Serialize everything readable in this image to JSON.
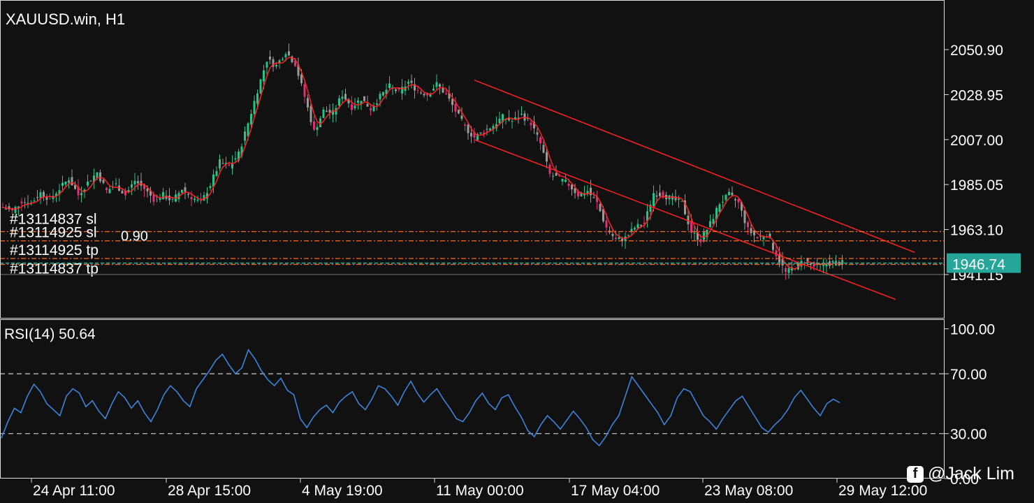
{
  "chart_data": [
    {
      "type": "candlestick",
      "title": "XAUUSD.win, H1",
      "ylim": [
        1930,
        2068
      ],
      "y_ticks": [
        "2050.90",
        "2028.95",
        "2007.00",
        "1985.05",
        "1963.10",
        "1941.15"
      ],
      "y_tick_values": [
        2050.9,
        2028.95,
        2007.0,
        1985.05,
        1963.1,
        1941.15
      ],
      "current_price": "1946.74",
      "current_price_value": 1946.74,
      "x_ticks": [
        "24 Apr 11:00",
        "28 Apr 15:00",
        "4 May 19:00",
        "11 May 00:00",
        "17 May 04:00",
        "23 May 08:00",
        "29 May 12:00"
      ],
      "close_path": [
        [
          0,
          1974
        ],
        [
          3,
          1972
        ],
        [
          6,
          1977
        ],
        [
          9,
          1976
        ],
        [
          12,
          1981
        ],
        [
          15,
          1978
        ],
        [
          18,
          1983
        ],
        [
          21,
          1988
        ],
        [
          24,
          1980
        ],
        [
          27,
          1986
        ],
        [
          30,
          1991
        ],
        [
          33,
          1982
        ],
        [
          36,
          1985
        ],
        [
          39,
          1980
        ],
        [
          42,
          1987
        ],
        [
          45,
          1983
        ],
        [
          48,
          1978
        ],
        [
          51,
          1980
        ],
        [
          54,
          1977
        ],
        [
          57,
          1983
        ],
        [
          60,
          1979
        ],
        [
          63,
          1976
        ],
        [
          66,
          1985
        ],
        [
          69,
          1996
        ],
        [
          72,
          1994
        ],
        [
          75,
          2000
        ],
        [
          78,
          2015
        ],
        [
          81,
          2031
        ],
        [
          84,
          2046
        ],
        [
          87,
          2043
        ],
        [
          90,
          2050
        ],
        [
          93,
          2044
        ],
        [
          96,
          2028
        ],
        [
          99,
          2011
        ],
        [
          102,
          2021
        ],
        [
          105,
          2020
        ],
        [
          108,
          2029
        ],
        [
          111,
          2023
        ],
        [
          114,
          2027
        ],
        [
          117,
          2022
        ],
        [
          120,
          2028
        ],
        [
          123,
          2033
        ],
        [
          126,
          2030
        ],
        [
          129,
          2035
        ],
        [
          132,
          2031
        ],
        [
          135,
          2029
        ],
        [
          138,
          2034
        ],
        [
          141,
          2029
        ],
        [
          144,
          2021
        ],
        [
          147,
          2013
        ],
        [
          150,
          2008
        ],
        [
          153,
          2011
        ],
        [
          156,
          2014
        ],
        [
          159,
          2018
        ],
        [
          162,
          2016
        ],
        [
          165,
          2019
        ],
        [
          168,
          2015
        ],
        [
          171,
          2005
        ],
        [
          174,
          1990
        ],
        [
          177,
          1988
        ],
        [
          180,
          1985
        ],
        [
          183,
          1980
        ],
        [
          186,
          1982
        ],
        [
          189,
          1976
        ],
        [
          192,
          1964
        ],
        [
          195,
          1958
        ],
        [
          198,
          1959
        ],
        [
          201,
          1964
        ],
        [
          204,
          1966
        ],
        [
          207,
          1981
        ],
        [
          210,
          1980
        ],
        [
          213,
          1978
        ],
        [
          216,
          1976
        ],
        [
          219,
          1962
        ],
        [
          222,
          1958
        ],
        [
          225,
          1966
        ],
        [
          228,
          1976
        ],
        [
          231,
          1980
        ],
        [
          234,
          1976
        ],
        [
          237,
          1963
        ],
        [
          240,
          1959
        ],
        [
          243,
          1961
        ],
        [
          246,
          1951
        ],
        [
          249,
          1942
        ],
        [
          252,
          1945
        ],
        [
          255,
          1948
        ],
        [
          258,
          1945
        ],
        [
          261,
          1946
        ],
        [
          264,
          1947
        ],
        [
          267,
          1946.74
        ]
      ],
      "channel_upper": [
        [
          150,
          2036
        ],
        [
          290,
          1952
        ]
      ],
      "channel_lower": [
        [
          150,
          2007
        ],
        [
          284,
          1929
        ]
      ],
      "order_levels": [
        {
          "label": "#13114837 sl",
          "price": 1962.1
        },
        {
          "label": "#13114925 sl",
          "price": 1957.6
        },
        {
          "label": "#13114925 tp",
          "price": 1949.0
        },
        {
          "label": "#13114837 tp",
          "price": 1946.1
        }
      ],
      "pending_text": "0.90",
      "grey_level": 1941.2
    },
    {
      "type": "line",
      "title": "RSI(14) 50.64",
      "ylim": [
        0,
        100
      ],
      "y_ticks": [
        "100.00",
        "70.00",
        "30.00",
        "0.00"
      ],
      "y_tick_values": [
        100,
        70,
        30,
        0
      ],
      "levels": [
        70,
        30
      ],
      "values": [
        27,
        38,
        47,
        44,
        55,
        63,
        58,
        50,
        46,
        42,
        55,
        60,
        57,
        48,
        52,
        45,
        40,
        50,
        58,
        54,
        47,
        52,
        44,
        38,
        46,
        56,
        62,
        58,
        52,
        48,
        60,
        66,
        72,
        79,
        83,
        76,
        70,
        74,
        86,
        80,
        72,
        66,
        62,
        67,
        59,
        56,
        40,
        34,
        41,
        46,
        49,
        44,
        51,
        55,
        58,
        50,
        46,
        53,
        62,
        60,
        55,
        49,
        58,
        65,
        57,
        51,
        56,
        60,
        53,
        47,
        40,
        38,
        44,
        52,
        57,
        50,
        46,
        54,
        56,
        48,
        41,
        32,
        28,
        36,
        42,
        38,
        33,
        39,
        45,
        40,
        34,
        26,
        22,
        28,
        36,
        42,
        55,
        68,
        62,
        56,
        50,
        44,
        36,
        42,
        54,
        60,
        58,
        50,
        42,
        38,
        33,
        40,
        46,
        52,
        55,
        48,
        41,
        34,
        31,
        36,
        40,
        46,
        54,
        59,
        53,
        47,
        42,
        50,
        53,
        50.64
      ]
    }
  ],
  "watermark": "@Jack Lim",
  "watermark_icon": "facebook-icon"
}
